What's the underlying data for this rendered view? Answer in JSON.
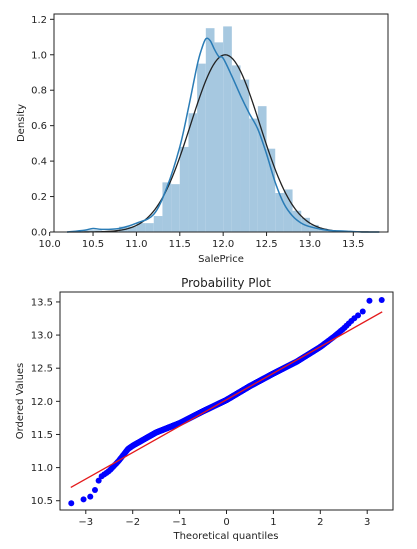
{
  "chart_data": [
    {
      "type": "bar",
      "title": "",
      "xlabel": "SalePrice",
      "ylabel": "Density",
      "xlim": [
        10.05,
        13.9
      ],
      "ylim": [
        0,
        1.23
      ],
      "xticks": [
        10.0,
        10.5,
        11.0,
        11.5,
        12.0,
        12.5,
        13.0,
        13.5
      ],
      "xtick_labels": [
        "10.0",
        "10.5",
        "11.0",
        "11.5",
        "12.0",
        "12.5",
        "13.0",
        "13.5"
      ],
      "yticks": [
        0.0,
        0.2,
        0.4,
        0.6,
        0.8,
        1.0,
        1.2
      ],
      "ytick_labels": [
        "0.0",
        "0.2",
        "0.4",
        "0.6",
        "0.8",
        "1.0",
        "1.2"
      ],
      "bin_width": 0.1,
      "bins": [
        {
          "start": 10.4,
          "density": 0.01
        },
        {
          "start": 10.5,
          "density": 0.01
        },
        {
          "start": 10.6,
          "density": 0.0
        },
        {
          "start": 10.7,
          "density": 0.0
        },
        {
          "start": 10.8,
          "density": 0.03
        },
        {
          "start": 10.9,
          "density": 0.03
        },
        {
          "start": 11.0,
          "density": 0.05
        },
        {
          "start": 11.1,
          "density": 0.05
        },
        {
          "start": 11.2,
          "density": 0.09
        },
        {
          "start": 11.3,
          "density": 0.28
        },
        {
          "start": 11.4,
          "density": 0.27
        },
        {
          "start": 11.5,
          "density": 0.48
        },
        {
          "start": 11.6,
          "density": 0.67
        },
        {
          "start": 11.7,
          "density": 0.95
        },
        {
          "start": 11.8,
          "density": 1.15
        },
        {
          "start": 11.9,
          "density": 1.07
        },
        {
          "start": 12.0,
          "density": 1.16
        },
        {
          "start": 12.1,
          "density": 0.94
        },
        {
          "start": 12.2,
          "density": 0.86
        },
        {
          "start": 12.3,
          "density": 0.64
        },
        {
          "start": 12.4,
          "density": 0.71
        },
        {
          "start": 12.5,
          "density": 0.47
        },
        {
          "start": 12.6,
          "density": 0.22
        },
        {
          "start": 12.7,
          "density": 0.24
        },
        {
          "start": 12.8,
          "density": 0.12
        },
        {
          "start": 12.9,
          "density": 0.08
        },
        {
          "start": 13.0,
          "density": 0.04
        },
        {
          "start": 13.1,
          "density": 0.02
        },
        {
          "start": 13.2,
          "density": 0.01
        },
        {
          "start": 13.3,
          "density": 0.0
        },
        {
          "start": 13.4,
          "density": 0.005
        }
      ],
      "kde_curve": {
        "x": [
          10.2,
          10.4,
          10.5,
          10.6,
          10.8,
          11.0,
          11.2,
          11.35,
          11.5,
          11.6,
          11.7,
          11.75,
          11.8,
          11.85,
          11.9,
          11.95,
          12.0,
          12.1,
          12.2,
          12.3,
          12.4,
          12.5,
          12.6,
          12.7,
          12.8,
          12.9,
          13.0,
          13.2,
          13.4,
          13.6,
          13.8
        ],
        "y": [
          0.0,
          0.01,
          0.02,
          0.015,
          0.02,
          0.05,
          0.1,
          0.25,
          0.48,
          0.7,
          0.94,
          1.03,
          1.09,
          1.08,
          1.03,
          0.99,
          0.98,
          0.88,
          0.77,
          0.67,
          0.58,
          0.44,
          0.28,
          0.16,
          0.09,
          0.05,
          0.03,
          0.01,
          0.005,
          0.0,
          0.0
        ],
        "color": "#1f77b4"
      },
      "normal_fit": {
        "mean": 12.024,
        "std": 0.399,
        "color": "#222222"
      },
      "colors": {
        "bars": "#a6c8e0",
        "kde": "#2a7cb6",
        "fit": "#222222"
      }
    },
    {
      "type": "scatter",
      "title": "Probability Plot",
      "xlabel": "Theoretical quantiles",
      "ylabel": "Ordered Values",
      "xlim": [
        -3.55,
        3.55
      ],
      "ylim": [
        10.36,
        13.65
      ],
      "xticks": [
        -3,
        -2,
        -1,
        0,
        1,
        2,
        3
      ],
      "xtick_labels": [
        "−3",
        "−2",
        "−1",
        "0",
        "1",
        "2",
        "3"
      ],
      "yticks": [
        10.5,
        11.0,
        11.5,
        12.0,
        12.5,
        13.0,
        13.5
      ],
      "ytick_labels": [
        "10.5",
        "11.0",
        "11.5",
        "12.0",
        "12.5",
        "13.0",
        "13.5"
      ],
      "fit_line": {
        "x": [
          -3.32,
          3.32
        ],
        "y": [
          10.7,
          13.35
        ],
        "color": "#e41a1c"
      },
      "ordered_quantile_profile": {
        "q": [
          -3.32,
          -3.0,
          -2.85,
          -2.7,
          -2.5,
          -2.3,
          -2.1,
          -2.0,
          -1.5,
          -1.0,
          -0.5,
          0.0,
          0.5,
          1.0,
          1.5,
          2.0,
          2.3,
          2.5,
          2.7,
          2.9,
          3.05,
          3.32
        ],
        "v": [
          10.46,
          10.53,
          10.58,
          10.85,
          10.95,
          11.1,
          11.28,
          11.33,
          11.53,
          11.67,
          11.85,
          12.02,
          12.23,
          12.42,
          12.6,
          12.82,
          12.98,
          13.1,
          13.24,
          13.35,
          13.52,
          13.53
        ]
      },
      "point_count": 1460,
      "colors": {
        "points": "#0000ff",
        "line": "#e41a1c"
      }
    }
  ]
}
